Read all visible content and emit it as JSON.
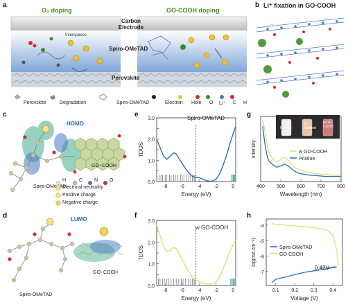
{
  "panels": {
    "a": {
      "label": "a",
      "title_left": "O₂ doping",
      "title_right": "GO-COOH doping",
      "carbon_label": "Carbon Electrode",
      "spiro_label": "Spiro-OMeTAD",
      "perovskite_label": "Perovskite",
      "interspaces": "Interspaces",
      "legend": [
        "Perovskite",
        "Degradation",
        "Spiro-OMeTAD",
        "Electron",
        "Hole",
        "O",
        "Li⁺",
        "C",
        "H"
      ],
      "colors": {
        "O": "#d62c2c",
        "Li": "#3a8a2a",
        "C": "#4a78c8",
        "H": "#e8e8e8",
        "electron": "#222222",
        "hole": "#e0a020"
      }
    },
    "b": {
      "label": "b",
      "title": "Li⁺ fixation in GO-COOH"
    },
    "c": {
      "label": "c",
      "state": "HOMO",
      "right": "GO−COOH",
      "left": "Spiro-OMeTAD",
      "legend": [
        "H",
        "C",
        "N",
        "O"
      ],
      "notes": [
        "Electrical neutrality",
        "Positive charge",
        "Negative charge"
      ]
    },
    "d": {
      "label": "d",
      "state": "LUMO",
      "right": "GO−COOH",
      "left": "Spiro-OMeTAD"
    },
    "e": {
      "label": "e",
      "annotation": "Spiro-OMeTAD",
      "ylabel": "TDOS",
      "xlabel": "Energy (eV)"
    },
    "f": {
      "label": "f",
      "annotation": "w GO-COOH",
      "ylabel": "TDOS",
      "xlabel": "Energy (eV)"
    },
    "g": {
      "label": "g",
      "ylabel": "Intensity",
      "xlabel": "Wavelength (nm)",
      "legend": [
        "w GO-COOH",
        "Pristine"
      ],
      "vials": [
        "Pristine",
        "O₂ bubbled",
        "w GO-COOH"
      ]
    },
    "h": {
      "label": "h",
      "ylabel": "log(mA cm⁻²)",
      "xlabel": "Voltage (V)",
      "legend": [
        "Spiro-OMeTAD",
        "GO-COOH"
      ],
      "annotation": "0.42V"
    }
  },
  "chart_data": [
    {
      "id": "e",
      "type": "line",
      "title": "",
      "xlabel": "Energy (eV)",
      "ylabel": "TDOS",
      "xlim": [
        -9,
        0.3
      ],
      "ylim": [
        0,
        3.0
      ],
      "xticks": [
        -8,
        -6,
        -4,
        -2,
        0
      ],
      "yticks": [
        0.0,
        0.5,
        1.0,
        1.5,
        2.0,
        2.5,
        3.0
      ],
      "ytick_labels": [
        "0.0",
        "",
        "1.0",
        "",
        "2.0",
        "",
        "3.0"
      ],
      "vline": -4.4,
      "series": [
        {
          "color": "#2a6fb0",
          "x": [
            -9,
            -8.6,
            -8.2,
            -7.8,
            -7.4,
            -7.0,
            -6.7,
            -6.4,
            -6.0,
            -5.6,
            -5.2,
            -4.8,
            -4.4,
            -4.0,
            -3.6,
            -3.2,
            -2.8,
            -2.4,
            -2.0,
            -1.6,
            -1.2,
            -0.8,
            -0.4,
            0.0,
            0.3
          ],
          "y": [
            2.0,
            1.6,
            1.2,
            1.05,
            1.2,
            1.35,
            1.3,
            1.1,
            0.85,
            0.6,
            0.4,
            0.25,
            0.2,
            0.18,
            0.12,
            0.05,
            0.02,
            0.03,
            0.12,
            0.35,
            0.75,
            1.2,
            1.75,
            2.25,
            2.6
          ]
        }
      ],
      "ticks_occupied": [
        -8.7,
        -8.5,
        -8.3,
        -8.0,
        -7.8,
        -7.5,
        -7.3,
        -7.0,
        -6.8,
        -6.5,
        -6.2,
        -6.0,
        -5.8,
        -5.5,
        -5.2,
        -5.0,
        -4.8,
        -4.6,
        -4.5
      ],
      "ticks_virtual": [
        -0.2,
        -0.1,
        0.0,
        0.05,
        0.1,
        0.15,
        0.2
      ]
    },
    {
      "id": "f",
      "type": "line",
      "title": "",
      "xlabel": "Energy (eV)",
      "ylabel": "TDOS",
      "xlim": [
        -9,
        0.3
      ],
      "ylim": [
        0,
        3.0
      ],
      "xticks": [
        -8,
        -6,
        -4,
        -2,
        0
      ],
      "yticks": [
        0.0,
        0.5,
        1.0,
        1.5,
        2.0,
        2.5,
        3.0
      ],
      "ytick_labels": [
        "0.0",
        "",
        "1.0",
        "",
        "2.0",
        "",
        "3.0"
      ],
      "vline": -4.4,
      "series": [
        {
          "color": "#d8e27a",
          "x": [
            -9,
            -8.6,
            -8.2,
            -7.8,
            -7.4,
            -7.0,
            -6.7,
            -6.4,
            -6.0,
            -5.6,
            -5.2,
            -4.8,
            -4.4,
            -4.0,
            -3.6,
            -3.2,
            -2.8,
            -2.4,
            -2.0,
            -1.6,
            -1.2,
            -0.8,
            -0.4,
            0.0,
            0.3
          ],
          "y": [
            2.8,
            2.3,
            1.8,
            1.55,
            1.6,
            1.75,
            1.7,
            1.5,
            1.2,
            0.9,
            0.6,
            0.4,
            0.25,
            0.18,
            0.12,
            0.08,
            0.06,
            0.08,
            0.15,
            0.4,
            0.75,
            1.15,
            1.55,
            1.9,
            2.1
          ]
        }
      ],
      "ticks_occupied": [
        -8.8,
        -8.6,
        -8.3,
        -8.1,
        -7.8,
        -7.6,
        -7.3,
        -7.0,
        -6.7,
        -6.4,
        -6.1,
        -5.9,
        -5.6,
        -5.3,
        -5.0,
        -4.8,
        -4.6,
        -4.5
      ],
      "ticks_virtual": [
        -0.3,
        -0.2,
        -0.1,
        0.0,
        0.05,
        0.1,
        0.2
      ]
    },
    {
      "id": "g",
      "type": "line",
      "title": "",
      "xlabel": "Wavelength (nm)",
      "ylabel": "Intensity",
      "xlim": [
        400,
        800
      ],
      "ylim": [
        0,
        1
      ],
      "xticks": [
        400,
        500,
        600,
        700,
        800
      ],
      "series": [
        {
          "name": "w GO-COOH",
          "color": "#d8e27a",
          "x": [
            410,
            420,
            430,
            440,
            460,
            480,
            500,
            520,
            540,
            560,
            580,
            600,
            640,
            680,
            720,
            760,
            800
          ],
          "y": [
            0.95,
            0.8,
            0.6,
            0.45,
            0.35,
            0.3,
            0.34,
            0.38,
            0.32,
            0.25,
            0.2,
            0.17,
            0.14,
            0.12,
            0.11,
            0.1,
            0.1
          ]
        },
        {
          "name": "Pristine",
          "color": "#2a6fb0",
          "x": [
            410,
            420,
            430,
            440,
            460,
            480,
            500,
            520,
            540,
            560,
            580,
            600,
            640,
            680,
            720,
            760,
            800
          ],
          "y": [
            0.85,
            0.6,
            0.42,
            0.32,
            0.26,
            0.22,
            0.24,
            0.27,
            0.23,
            0.18,
            0.14,
            0.12,
            0.1,
            0.09,
            0.08,
            0.08,
            0.08
          ]
        }
      ]
    },
    {
      "id": "h",
      "type": "line",
      "title": "",
      "xlabel": "Voltage (V)",
      "ylabel": "log(mA cm⁻²)",
      "xlim": [
        0.05,
        0.45
      ],
      "ylim": [
        -7.9,
        -3.6
      ],
      "xticks": [
        0.1,
        0.2,
        0.3,
        0.4
      ],
      "yticks": [
        -4,
        -5,
        -6,
        -7
      ],
      "annotation_x": 0.42,
      "series": [
        {
          "name": "Spiro-OMeTAD",
          "color": "#2a6fb0",
          "x": [
            0.08,
            0.1,
            0.15,
            0.2,
            0.25,
            0.3,
            0.35,
            0.4,
            0.42
          ],
          "y": [
            -7.7,
            -7.5,
            -7.35,
            -7.2,
            -7.05,
            -6.95,
            -6.85,
            -6.75,
            -6.7
          ]
        },
        {
          "name": "GO-COOH",
          "color": "#d8e27a",
          "x": [
            0.08,
            0.1,
            0.15,
            0.2,
            0.25,
            0.3,
            0.35,
            0.38,
            0.4,
            0.42,
            0.43
          ],
          "y": [
            -3.9,
            -3.95,
            -4.0,
            -4.05,
            -4.1,
            -4.15,
            -4.25,
            -4.4,
            -4.7,
            -5.6,
            -6.6
          ]
        }
      ]
    }
  ]
}
